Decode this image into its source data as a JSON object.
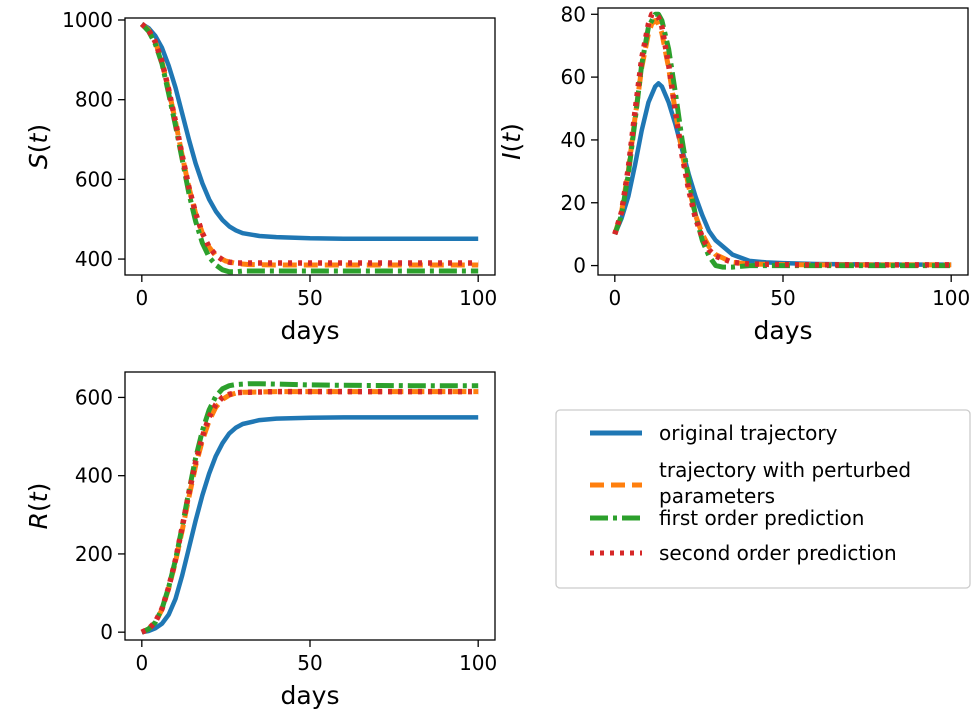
{
  "chart_data": [
    {
      "type": "line",
      "panel": "S",
      "ylabel": "S(t)",
      "xlabel": "days",
      "xlim": [
        -5,
        105
      ],
      "ylim": [
        360,
        1005
      ],
      "xticks": [
        0,
        50,
        100
      ],
      "yticks": [
        400,
        600,
        800,
        1000
      ],
      "series": [
        {
          "name": "original trajectory",
          "color": "#1f77b4",
          "x": [
            0,
            2,
            4,
            6,
            8,
            10,
            12,
            14,
            16,
            18,
            20,
            22,
            24,
            26,
            28,
            30,
            35,
            40,
            50,
            60,
            80,
            100
          ],
          "y": [
            990,
            980,
            960,
            930,
            885,
            830,
            765,
            700,
            640,
            590,
            550,
            520,
            498,
            482,
            472,
            465,
            458,
            455,
            452,
            451,
            451,
            451
          ]
        },
        {
          "name": "trajectory with perturbed parameters",
          "color": "#ff7f0e",
          "x": [
            0,
            2,
            4,
            6,
            8,
            10,
            12,
            14,
            16,
            18,
            20,
            22,
            25,
            28,
            32,
            40,
            50,
            60,
            80,
            100
          ],
          "y": [
            990,
            975,
            945,
            895,
            825,
            745,
            660,
            580,
            515,
            465,
            430,
            408,
            395,
            389,
            386,
            385,
            385,
            385,
            385,
            385
          ]
        },
        {
          "name": "first order prediction",
          "color": "#2ca02c",
          "x": [
            0,
            2,
            4,
            6,
            8,
            10,
            12,
            14,
            16,
            18,
            20,
            22,
            24,
            26,
            28,
            30,
            35,
            40,
            50,
            60,
            80,
            100
          ],
          "y": [
            990,
            972,
            940,
            890,
            815,
            735,
            650,
            565,
            495,
            440,
            405,
            385,
            373,
            368,
            368,
            370,
            370,
            370,
            370,
            370,
            370,
            370
          ]
        },
        {
          "name": "second order prediction",
          "color": "#d62728",
          "x": [
            0,
            2,
            4,
            6,
            8,
            10,
            12,
            14,
            16,
            18,
            20,
            22,
            24,
            26,
            28,
            30,
            35,
            40,
            50,
            60,
            80,
            100
          ],
          "y": [
            990,
            975,
            945,
            895,
            825,
            745,
            660,
            580,
            515,
            465,
            430,
            410,
            398,
            392,
            390,
            390,
            390,
            390,
            390,
            390,
            390,
            390
          ]
        }
      ]
    },
    {
      "type": "line",
      "panel": "I",
      "ylabel": "I(t)",
      "xlabel": "days",
      "xlim": [
        -5,
        105
      ],
      "ylim": [
        -3,
        82
      ],
      "xticks": [
        0,
        50,
        100
      ],
      "yticks": [
        0,
        20,
        40,
        60,
        80
      ],
      "series": [
        {
          "name": "original trajectory",
          "color": "#1f77b4",
          "x": [
            0,
            2,
            4,
            6,
            8,
            10,
            12,
            13,
            14,
            16,
            18,
            20,
            22,
            24,
            26,
            28,
            30,
            35,
            40,
            45,
            50,
            60,
            80,
            100
          ],
          "y": [
            10,
            15,
            22,
            32,
            43,
            52,
            57,
            58,
            57,
            52,
            45,
            37,
            29,
            22,
            16,
            11,
            8,
            3.5,
            1.5,
            1,
            0.8,
            0.5,
            0.3,
            0.3
          ]
        },
        {
          "name": "trajectory with perturbed parameters",
          "color": "#ff7f0e",
          "x": [
            0,
            2,
            4,
            6,
            8,
            10,
            11,
            12,
            13,
            14,
            16,
            18,
            20,
            22,
            24,
            26,
            28,
            30,
            35,
            40,
            50,
            60,
            80,
            100
          ],
          "y": [
            10,
            17,
            30,
            47,
            63,
            74,
            77,
            78,
            77,
            74,
            63,
            49,
            36,
            25,
            16,
            10,
            6,
            3.5,
            1,
            0.5,
            0.3,
            0.2,
            0.2,
            0.2
          ]
        },
        {
          "name": "first order prediction",
          "color": "#2ca02c",
          "x": [
            0,
            2,
            4,
            6,
            8,
            10,
            12,
            13,
            14,
            16,
            18,
            20,
            22,
            24,
            26,
            28,
            30,
            32,
            35,
            40,
            50,
            60,
            80,
            100
          ],
          "y": [
            10,
            16,
            29,
            46,
            64,
            76,
            80,
            80,
            78,
            69,
            55,
            40,
            27,
            16,
            8,
            3,
            0,
            -0.5,
            -0.5,
            0,
            0,
            0,
            0,
            0
          ]
        },
        {
          "name": "second order prediction",
          "color": "#d62728",
          "x": [
            0,
            2,
            4,
            6,
            8,
            10,
            11,
            12,
            13,
            14,
            16,
            18,
            20,
            22,
            24,
            26,
            28,
            30,
            35,
            40,
            50,
            60,
            80,
            100
          ],
          "y": [
            10,
            17,
            31,
            49,
            66,
            77,
            80,
            80,
            79,
            76,
            64,
            49,
            35,
            24,
            15,
            9,
            5,
            3,
            1,
            0.5,
            0.3,
            0.2,
            0.2,
            0.2
          ]
        }
      ]
    },
    {
      "type": "line",
      "panel": "R",
      "ylabel": "R(t)",
      "xlabel": "days",
      "xlim": [
        -5,
        105
      ],
      "ylim": [
        -20,
        665
      ],
      "xticks": [
        0,
        50,
        100
      ],
      "yticks": [
        0,
        200,
        400,
        600
      ],
      "series": [
        {
          "name": "original trajectory",
          "color": "#1f77b4",
          "x": [
            0,
            2,
            4,
            6,
            8,
            10,
            12,
            14,
            16,
            18,
            20,
            22,
            24,
            26,
            28,
            30,
            35,
            40,
            50,
            60,
            80,
            100
          ],
          "y": [
            0,
            3,
            10,
            22,
            45,
            85,
            145,
            215,
            285,
            350,
            405,
            450,
            483,
            508,
            523,
            532,
            542,
            546,
            548,
            549,
            549,
            549
          ]
        },
        {
          "name": "trajectory with perturbed parameters",
          "color": "#ff7f0e",
          "x": [
            0,
            2,
            4,
            6,
            8,
            10,
            12,
            14,
            16,
            18,
            20,
            22,
            24,
            26,
            28,
            30,
            35,
            40,
            50,
            60,
            80,
            100
          ],
          "y": [
            0,
            8,
            25,
            58,
            112,
            180,
            260,
            345,
            425,
            490,
            540,
            575,
            595,
            606,
            611,
            613,
            614,
            615,
            615,
            615,
            615,
            615
          ]
        },
        {
          "name": "first order prediction",
          "color": "#2ca02c",
          "x": [
            0,
            2,
            4,
            6,
            8,
            10,
            12,
            14,
            16,
            18,
            20,
            22,
            24,
            26,
            28,
            30,
            32,
            35,
            40,
            50,
            60,
            80,
            100
          ],
          "y": [
            0,
            8,
            25,
            60,
            115,
            185,
            270,
            360,
            445,
            515,
            568,
            603,
            622,
            630,
            633,
            634,
            635,
            635,
            634,
            632,
            631,
            630,
            630
          ]
        },
        {
          "name": "second order prediction",
          "color": "#d62728",
          "x": [
            0,
            2,
            4,
            6,
            8,
            10,
            12,
            14,
            16,
            18,
            20,
            22,
            24,
            26,
            28,
            30,
            35,
            40,
            50,
            60,
            80,
            100
          ],
          "y": [
            0,
            8,
            26,
            60,
            115,
            185,
            268,
            355,
            435,
            500,
            550,
            582,
            600,
            608,
            612,
            613,
            614,
            615,
            615,
            615,
            615,
            615
          ]
        }
      ]
    }
  ],
  "legend": {
    "placement": "lower-right",
    "entries": [
      {
        "label_lines": [
          "original trajectory"
        ],
        "color": "#1f77b4",
        "style": "solid"
      },
      {
        "label_lines": [
          "trajectory with perturbed",
          "parameters"
        ],
        "color": "#ff7f0e",
        "style": "dashed"
      },
      {
        "label_lines": [
          "first order prediction"
        ],
        "color": "#2ca02c",
        "style": "dashdot"
      },
      {
        "label_lines": [
          "second order prediction"
        ],
        "color": "#d62728",
        "style": "dotted"
      }
    ]
  }
}
